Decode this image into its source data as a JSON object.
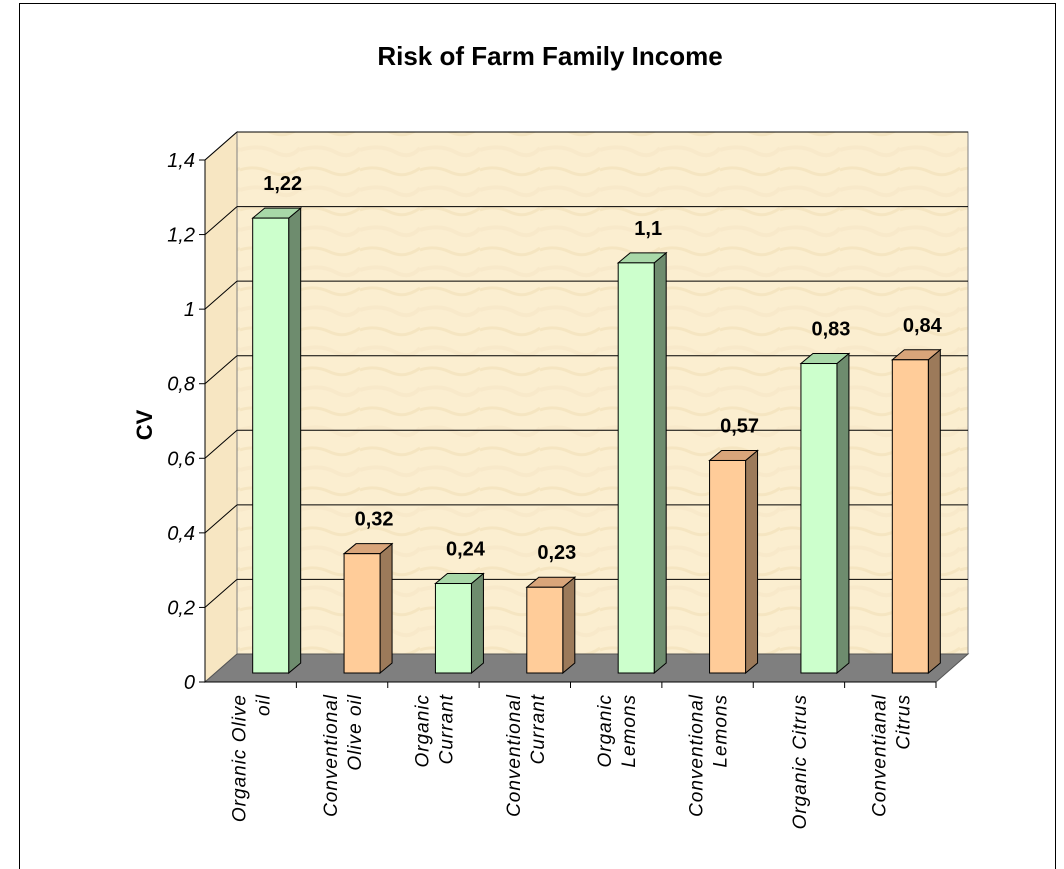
{
  "chart_data": {
    "type": "bar",
    "title": "Risk of Farm Family Income",
    "xlabel": "",
    "ylabel": "CV",
    "ylim": [
      0,
      1.4
    ],
    "yticks": [
      "0",
      "0,2",
      "0,4",
      "0,6",
      "0,8",
      "1",
      "1,2",
      "1,4"
    ],
    "grid": true,
    "categories": [
      [
        "Organic Olive",
        "oil"
      ],
      [
        "Conventional",
        "Olive oil"
      ],
      [
        "Organic",
        "Currant"
      ],
      [
        "Conventional",
        "Currant"
      ],
      [
        "Organic",
        "Lemons"
      ],
      [
        "Conventional",
        "Lemons"
      ],
      [
        "Organic Citrus"
      ],
      [
        "Conventianal",
        "Citrus"
      ]
    ],
    "values": [
      1.22,
      0.32,
      0.24,
      0.23,
      1.1,
      0.57,
      0.83,
      0.84
    ],
    "value_labels": [
      "1,22",
      "0,32",
      "0,24",
      "0,23",
      "1,1",
      "0,57",
      "0,83",
      "0,84"
    ],
    "bar_colors": [
      "#ccffcc",
      "#ffcc99",
      "#ccffcc",
      "#ffcc99",
      "#ccffcc",
      "#ffcc99",
      "#ccffcc",
      "#ffcc99"
    ],
    "side_colors": [
      "#6e8c6e",
      "#9c7a5a",
      "#6e8c6e",
      "#9c7a5a",
      "#6e8c6e",
      "#9c7a5a",
      "#6e8c6e",
      "#9c7a5a"
    ],
    "top_colors": [
      "#a8d8a8",
      "#d9a57a",
      "#a8d8a8",
      "#d9a57a",
      "#a8d8a8",
      "#d9a57a",
      "#a8d8a8",
      "#d9a57a"
    ],
    "wall_color": "#fbeed0",
    "floor_color": "#7f7f7f"
  }
}
